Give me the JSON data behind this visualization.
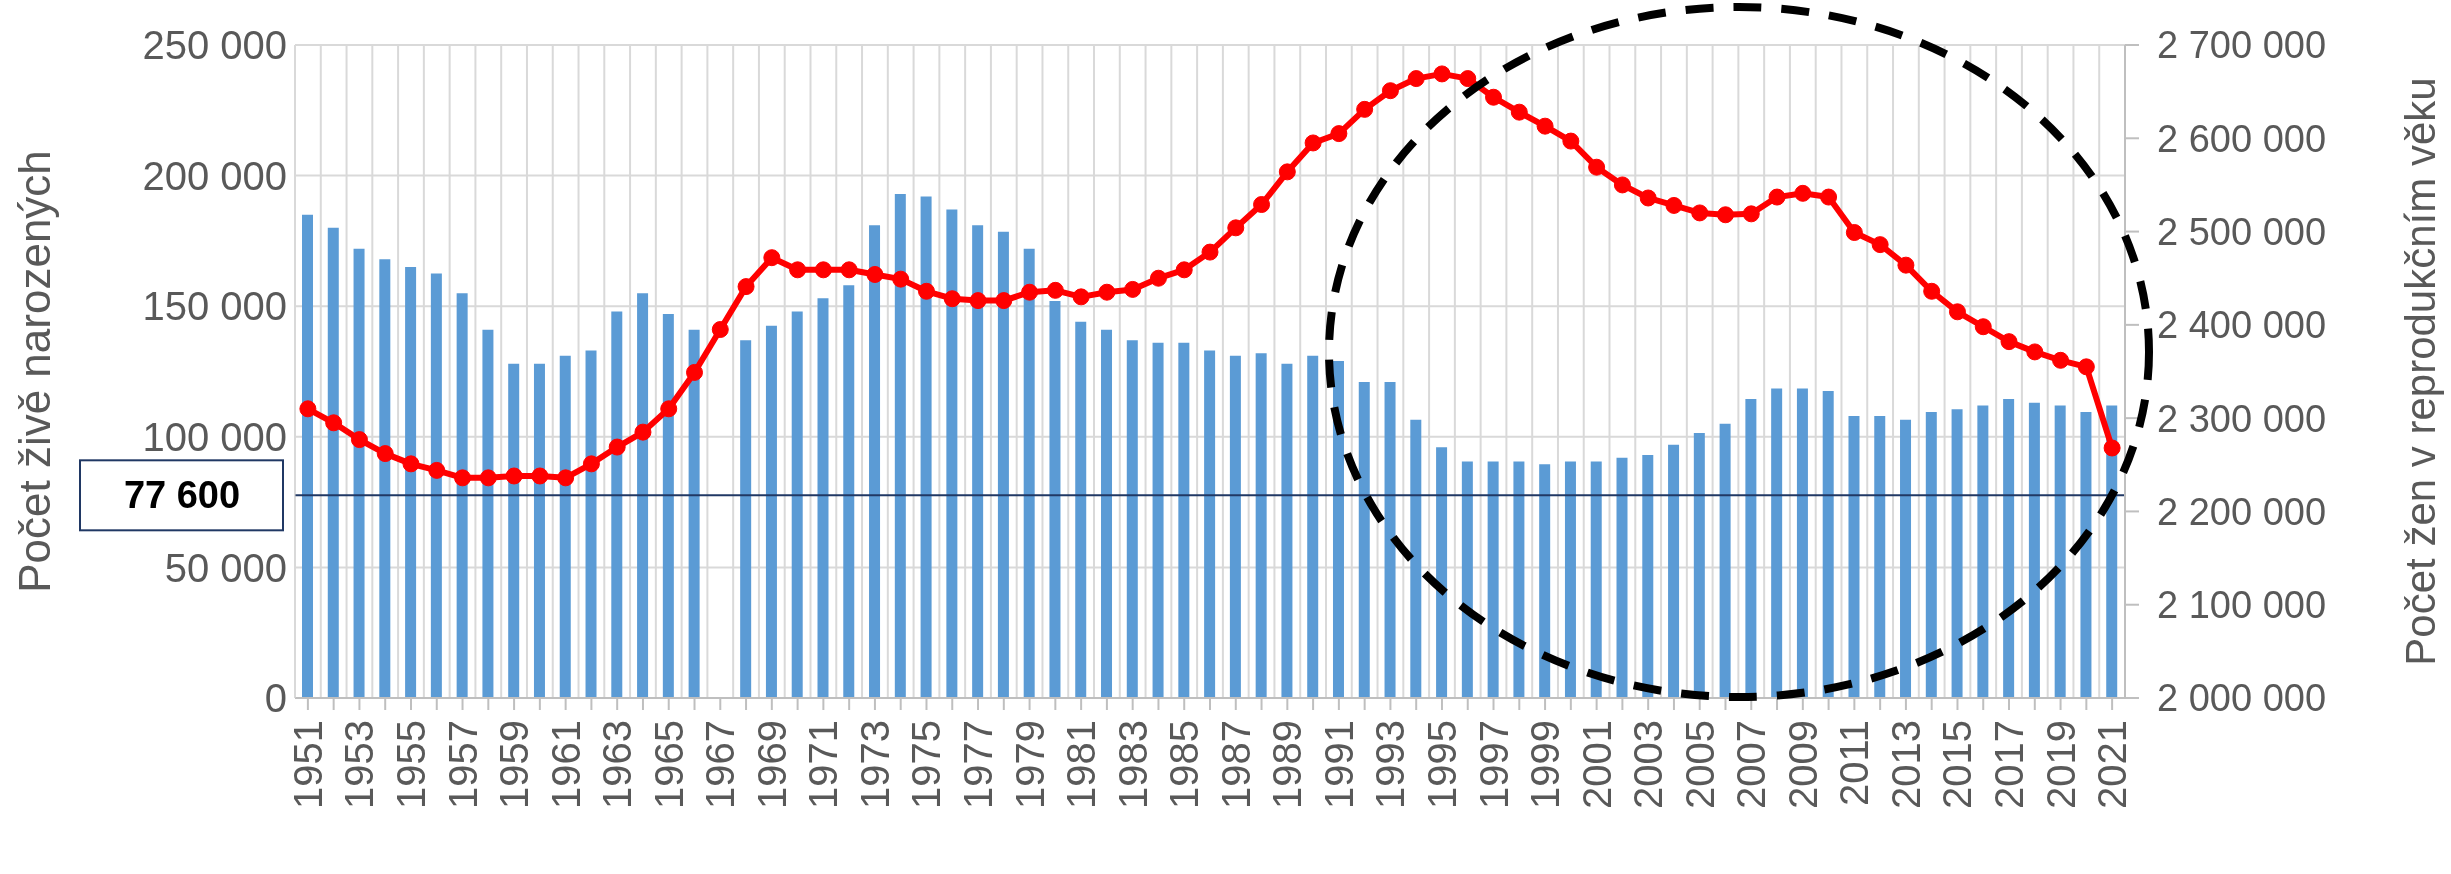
{
  "chart_data": {
    "type": "bar",
    "categories": [
      "1951",
      null,
      "1953",
      null,
      "1955",
      null,
      "1957",
      null,
      "1959",
      null,
      "1961",
      null,
      "1963",
      null,
      "1965",
      null,
      "1967",
      null,
      "1969",
      null,
      "1971",
      null,
      "1973",
      null,
      "1975",
      null,
      "1977",
      null,
      "1979",
      null,
      "1981",
      null,
      "1983",
      null,
      "1985",
      null,
      "1987",
      null,
      "1989",
      null,
      "1991",
      null,
      "1993",
      null,
      "1995",
      null,
      "1997",
      null,
      "1999",
      null,
      "2001",
      null,
      "2003",
      null,
      "2005",
      null,
      "2007",
      null,
      "2009",
      null,
      "2011",
      null,
      "2013",
      null,
      "2015",
      null,
      "2017",
      null,
      "2019",
      null,
      "2021"
    ],
    "series": [
      {
        "color": "#5b9bd5",
        "values": [
          185000,
          180000,
          172000,
          168000,
          165000,
          162500,
          155000,
          141000,
          128000,
          128000,
          131000,
          133000,
          148000,
          155000,
          147000,
          141000,
          null,
          137000,
          142500,
          148000,
          153000,
          158000,
          181000,
          193000,
          192000,
          187000,
          181000,
          178500,
          172000,
          152000,
          144000,
          141000,
          137000,
          136000,
          136000,
          133000,
          131000,
          132000,
          128000,
          131000,
          129000,
          121000,
          121000,
          106500,
          96000,
          90500,
          90500,
          90500,
          89500,
          90500,
          90500,
          92000,
          93000,
          97000,
          101500,
          105000,
          114500,
          118500,
          118500,
          117500,
          108000,
          108000,
          106500,
          109500,
          110500,
          112000,
          114500,
          113000,
          112000,
          109500,
          112000
        ]
      },
      {
        "type": "line",
        "axis": "y2",
        "color": "#ff0000",
        "values": [
          2310000,
          2295000,
          2277000,
          2262000,
          2251000,
          2244000,
          2236000,
          2236000,
          2238000,
          2238000,
          2236000,
          2251000,
          2269000,
          2285000,
          2310000,
          2349000,
          2395000,
          2441000,
          2472000,
          2459000,
          2459000,
          2459000,
          2454000,
          2449000,
          2436000,
          2428000,
          2426000,
          2426000,
          2435000,
          2437000,
          2430000,
          2435000,
          2438000,
          2450000,
          2459000,
          2478000,
          2504000,
          2529000,
          2564000,
          2595000,
          2605000,
          2631000,
          2651000,
          2664000,
          2669000,
          2664000,
          2644000,
          2628000,
          2613000,
          2597000,
          2569000,
          2550000,
          2536000,
          2528000,
          2520000,
          2518000,
          2519000,
          2537000,
          2541000,
          2537000,
          2499000,
          2486000,
          2464000,
          2436000,
          2414000,
          2398000,
          2382000,
          2371000,
          2362000,
          2355000,
          2268000
        ]
      }
    ],
    "marker": "circle",
    "ylabel": "Počet živě narozených",
    "y2label": "Počet žen v reprodukčním věku",
    "ylim": [
      0,
      250000
    ],
    "yticks": [
      {
        "value": 0,
        "label": "0"
      },
      {
        "value": 50000,
        "label": "50 000"
      },
      {
        "value": 100000,
        "label": "100 000"
      },
      {
        "value": 150000,
        "label": "150 000"
      },
      {
        "value": 200000,
        "label": "200 000"
      },
      {
        "value": 250000,
        "label": "250 000"
      }
    ],
    "y2lim": [
      2000000,
      2700000
    ],
    "y2ticks": [
      {
        "value": 2000000,
        "label": "2 000 000"
      },
      {
        "value": 2100000,
        "label": "2 100 000"
      },
      {
        "value": 2200000,
        "label": "2 200 000"
      },
      {
        "value": 2300000,
        "label": "2 300 000"
      },
      {
        "value": 2400000,
        "label": "2 400 000"
      },
      {
        "value": 2500000,
        "label": "2 500 000"
      },
      {
        "value": 2600000,
        "label": "2 600 000"
      },
      {
        "value": 2700000,
        "label": "2 700 000"
      }
    ],
    "grid": true,
    "ref_lines": [
      {
        "axis": "y",
        "value": 77600,
        "label": "77 600",
        "color": "#203864"
      }
    ]
  }
}
